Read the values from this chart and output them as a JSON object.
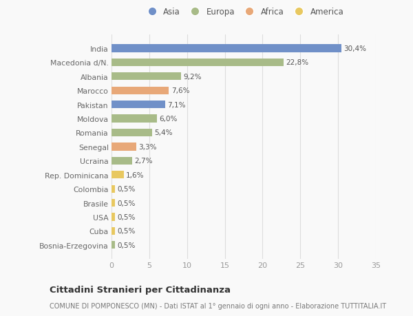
{
  "countries": [
    "India",
    "Macedonia d/N.",
    "Albania",
    "Marocco",
    "Pakistan",
    "Moldova",
    "Romania",
    "Senegal",
    "Ucraina",
    "Rep. Dominicana",
    "Colombia",
    "Brasile",
    "USA",
    "Cuba",
    "Bosnia-Erzegovina"
  ],
  "values": [
    30.4,
    22.8,
    9.2,
    7.6,
    7.1,
    6.0,
    5.4,
    3.3,
    2.7,
    1.6,
    0.5,
    0.5,
    0.5,
    0.5,
    0.5
  ],
  "labels": [
    "30,4%",
    "22,8%",
    "9,2%",
    "7,6%",
    "7,1%",
    "6,0%",
    "5,4%",
    "3,3%",
    "2,7%",
    "1,6%",
    "0,5%",
    "0,5%",
    "0,5%",
    "0,5%",
    "0,5%"
  ],
  "continents": [
    "Asia",
    "Europa",
    "Europa",
    "Africa",
    "Asia",
    "Europa",
    "Europa",
    "Africa",
    "Europa",
    "America",
    "America",
    "America",
    "America",
    "America",
    "Europa"
  ],
  "colors": {
    "Asia": "#7090c8",
    "Europa": "#a8bb88",
    "Africa": "#e8a878",
    "America": "#e8c860"
  },
  "legend_order": [
    "Asia",
    "Europa",
    "Africa",
    "America"
  ],
  "title": "Cittadini Stranieri per Cittadinanza",
  "subtitle": "COMUNE DI POMPONESCO (MN) - Dati ISTAT al 1° gennaio di ogni anno - Elaborazione TUTTITALIA.IT",
  "xlim": [
    0,
    35
  ],
  "xticks": [
    0,
    5,
    10,
    15,
    20,
    25,
    30,
    35
  ],
  "bg_color": "#f9f9f9",
  "grid_color": "#dddddd",
  "bar_height": 0.55
}
